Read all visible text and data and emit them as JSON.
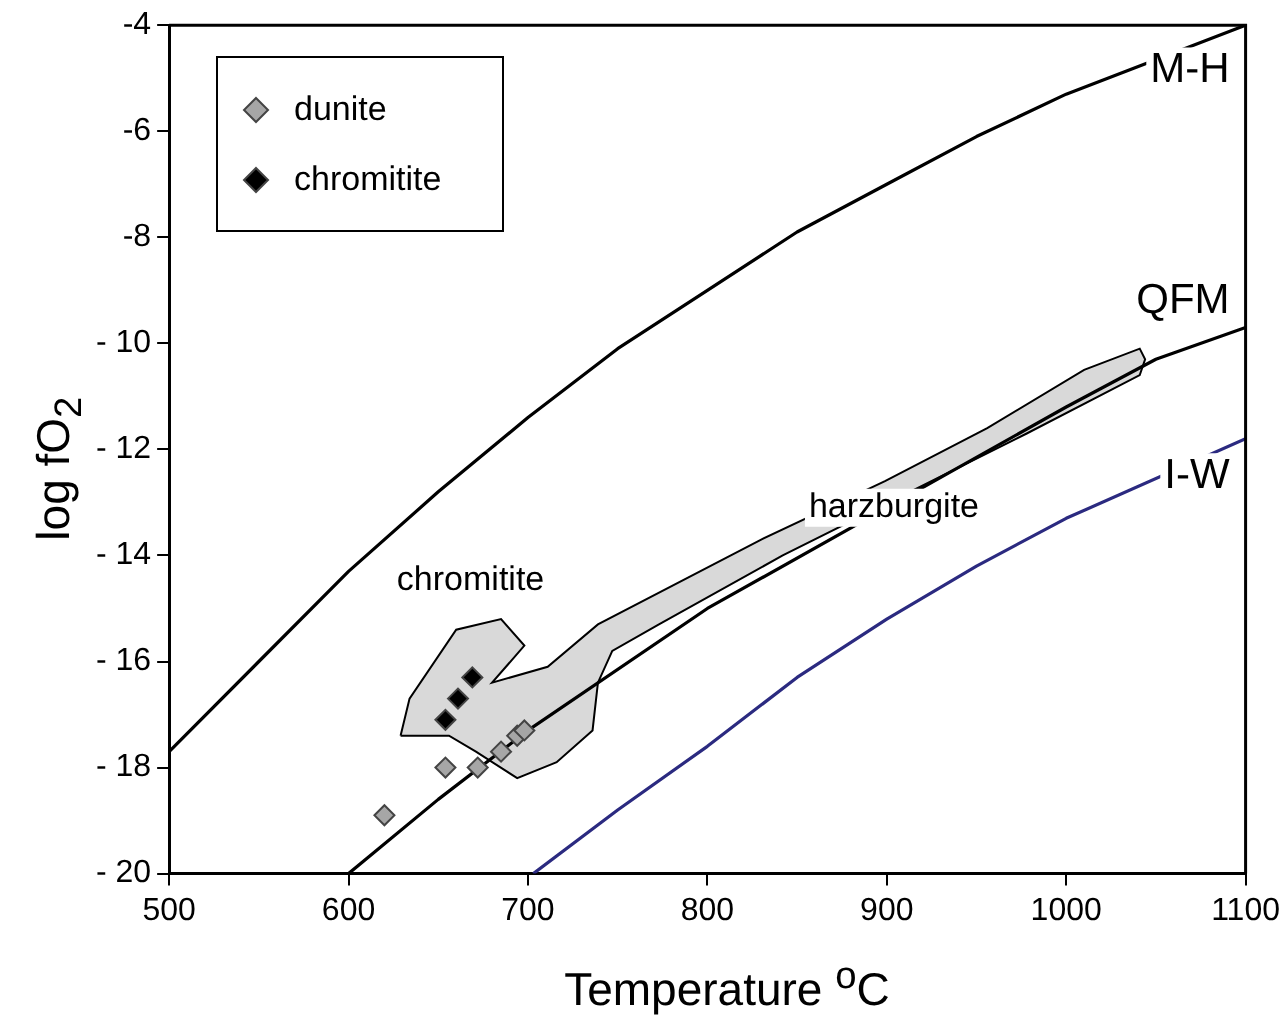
{
  "chart_data": {
    "type": "scatter",
    "xlabel": "Temperature $^{o}$C",
    "ylabel": "log fO$_{2}$",
    "xlim": [
      500,
      1100
    ],
    "xticks": [
      500,
      600,
      700,
      800,
      900,
      1000,
      1100
    ],
    "ylim": [
      -20,
      -4
    ],
    "yticks": [
      {
        "value": -20,
        "label": "- 20"
      },
      {
        "value": -18,
        "label": "- 18"
      },
      {
        "value": -16,
        "label": "- 16"
      },
      {
        "value": -14,
        "label": "- 14"
      },
      {
        "value": -12,
        "label": "- 12"
      },
      {
        "value": -10,
        "label": "- 10"
      },
      -8,
      -6,
      -4
    ],
    "grid": false,
    "legend": "top left",
    "series": [
      {
        "type": "area",
        "color": "#d9d9d9",
        "x": [
          629,
          634,
          660,
          685,
          698,
          680,
          711,
          739,
          830,
          899,
          956,
          1010,
          1041,
          1044,
          1041,
          978,
          842,
          773,
          747,
          739,
          736,
          716,
          694,
          671,
          656,
          629
        ],
        "values": [
          -17.4,
          -16.7,
          -15.4,
          -15.2,
          -15.7,
          -16.4,
          -16.1,
          -15.3,
          -13.7,
          -12.6,
          -11.6,
          -10.5,
          -10.1,
          -10.3,
          -10.6,
          -11.7,
          -14.0,
          -15.3,
          -15.8,
          -16.4,
          -17.3,
          -17.9,
          -18.2,
          -17.7,
          -17.4,
          -17.4
        ]
      },
      {
        "type": "line",
        "name": "M-H",
        "color": "#000000",
        "x": [
          500,
          550,
          600,
          650,
          700,
          750,
          800,
          850,
          900,
          950,
          1000,
          1100
        ],
        "values": [
          -17.7,
          -16.0,
          -14.3,
          -12.8,
          -11.4,
          -10.1,
          -9.0,
          -7.9,
          -7.0,
          -6.1,
          -5.3,
          -4.0
        ]
      },
      {
        "type": "line",
        "name": "QFM",
        "color": "#000000",
        "x": [
          600,
          650,
          700,
          800,
          1000,
          1050,
          1100
        ],
        "values": [
          -20.0,
          -18.6,
          -17.3,
          -15.0,
          -11.2,
          -10.3,
          -9.7
        ]
      },
      {
        "type": "line",
        "name": "I-W",
        "color": "#2b2a80",
        "x": [
          703,
          750,
          800,
          850,
          900,
          950,
          1000,
          1100
        ],
        "values": [
          -20.0,
          -18.8,
          -17.6,
          -16.3,
          -15.2,
          -14.2,
          -13.3,
          -11.8
        ]
      },
      {
        "name": "dunite",
        "color": "#a6a6a6",
        "marker": "diamond",
        "x": [
          620,
          654,
          672,
          685,
          694,
          698
        ],
        "values": [
          -18.9,
          -18.0,
          -18.0,
          -17.7,
          -17.4,
          -17.3
        ]
      },
      {
        "name": "chromitite",
        "color": "#000000",
        "marker": "diamond",
        "x": [
          654,
          661,
          669
        ],
        "values": [
          -17.1,
          -16.7,
          -16.3
        ]
      }
    ],
    "annotations": [
      {
        "text": "harzburgite",
        "x": 904,
        "y": -13.1
      },
      "chromitite"
    ]
  }
}
